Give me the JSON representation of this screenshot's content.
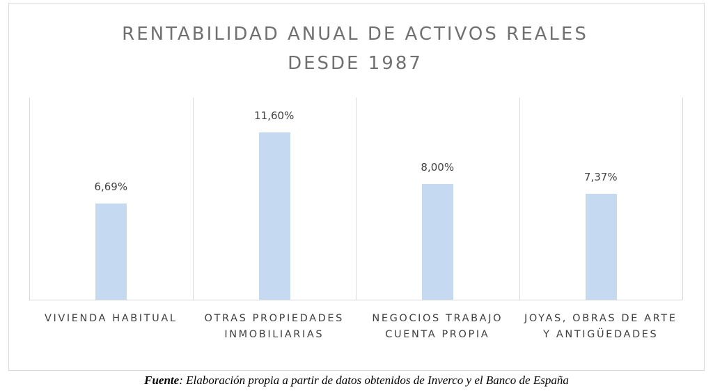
{
  "chart_data": {
    "type": "bar",
    "title": "RENTABILIDAD ANUAL DE ACTIVOS REALES DESDE 1987",
    "categories": [
      "VIVIENDA HABITUAL",
      "OTRAS PROPIEDADES INMOBILIARIAS",
      "NEGOCIOS TRABAJO CUENTA PROPIA",
      "JOYAS, OBRAS DE ARTE Y ANTIGÜEDADES"
    ],
    "values": [
      6.69,
      11.6,
      8.0,
      7.37
    ],
    "value_labels": [
      "6,69%",
      "11,60%",
      "8,00%",
      "7,37%"
    ],
    "color": "#c5d9f0"
  },
  "source": {
    "label": "Fuente",
    "text": ": Elaboración propia a partir de datos obtenidos de Inverco y el Banco de España"
  }
}
